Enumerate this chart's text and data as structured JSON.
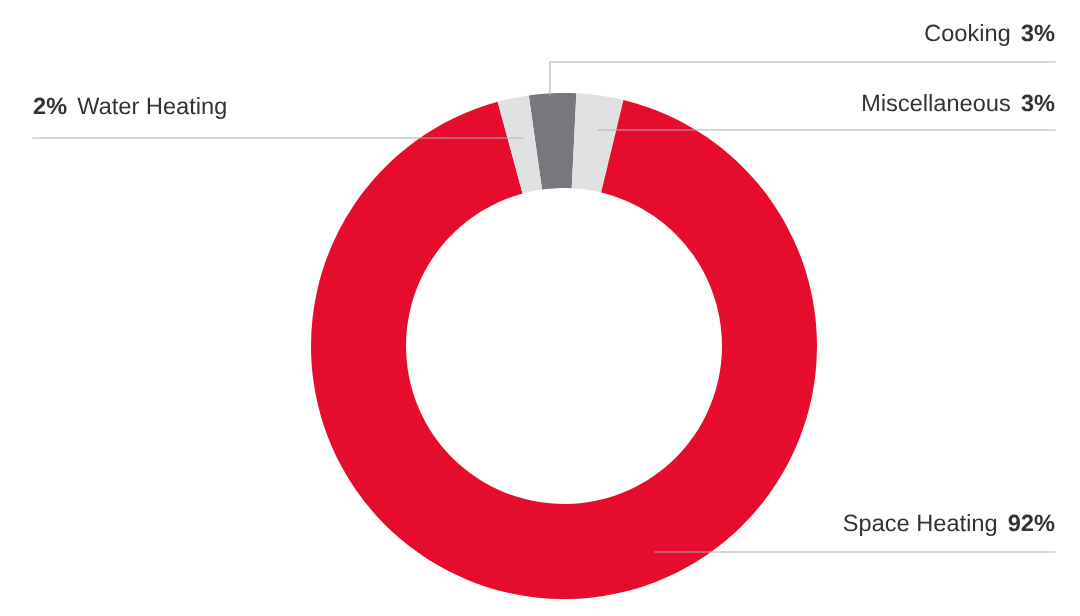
{
  "chart_data": {
    "type": "donut",
    "categories": [
      "Cooking",
      "Miscellaneous",
      "Space Heating",
      "Water Heating"
    ],
    "values": [
      3,
      3,
      92,
      2
    ],
    "value_labels": [
      "3%",
      "3%",
      "92%",
      "2%"
    ],
    "colors": [
      "#77787b",
      "#e0e1e3",
      "#e60c2c",
      "#e0e1e3"
    ],
    "legend": false
  }
}
